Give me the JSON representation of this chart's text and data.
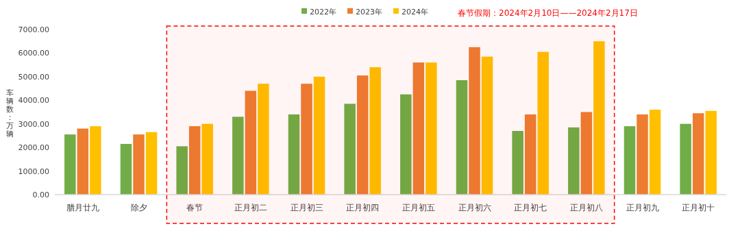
{
  "chart_data": {
    "type": "bar",
    "ylabel": "车辆数：万辆",
    "categories": [
      "腊月廿九",
      "除夕",
      "春节",
      "正月初二",
      "正月初三",
      "正月初四",
      "正月初五",
      "正月初六",
      "正月初七",
      "正月初八",
      "正月初九",
      "正月初十"
    ],
    "series": [
      {
        "name": "2022年",
        "color": "#70ad47",
        "values": [
          2550,
          2150,
          2050,
          3300,
          3400,
          3850,
          4250,
          4850,
          2700,
          2850,
          2900,
          3000
        ]
      },
      {
        "name": "2023年",
        "color": "#ed7d31",
        "values": [
          2800,
          2550,
          2900,
          4400,
          4700,
          5050,
          5600,
          6250,
          3400,
          3500,
          3400,
          3450
        ]
      },
      {
        "name": "2024年",
        "color": "#ffc000",
        "values": [
          2900,
          2650,
          3000,
          4700,
          5000,
          5400,
          5600,
          5850,
          6050,
          6500,
          3600,
          3550
        ]
      }
    ],
    "ylim": [
      0,
      7000
    ],
    "yticks": [
      {
        "value": 0,
        "label": "0.00"
      },
      {
        "value": 1000,
        "label": "1000.00"
      },
      {
        "value": 2000,
        "label": "2000.00"
      },
      {
        "value": 3000,
        "label": "3000.00"
      },
      {
        "value": 4000,
        "label": "4000.00"
      },
      {
        "value": 5000,
        "label": "5000.00"
      },
      {
        "value": 6000,
        "label": "6000.00"
      },
      {
        "value": 7000,
        "label": "7000.00"
      }
    ],
    "bands": [
      {
        "axis": "x",
        "from": "春节",
        "to": "正月初八",
        "label": "春节假期：2024年2月10日——2024年2月17日",
        "color": "#ff0000"
      }
    ],
    "grid": false,
    "legend": "top"
  }
}
